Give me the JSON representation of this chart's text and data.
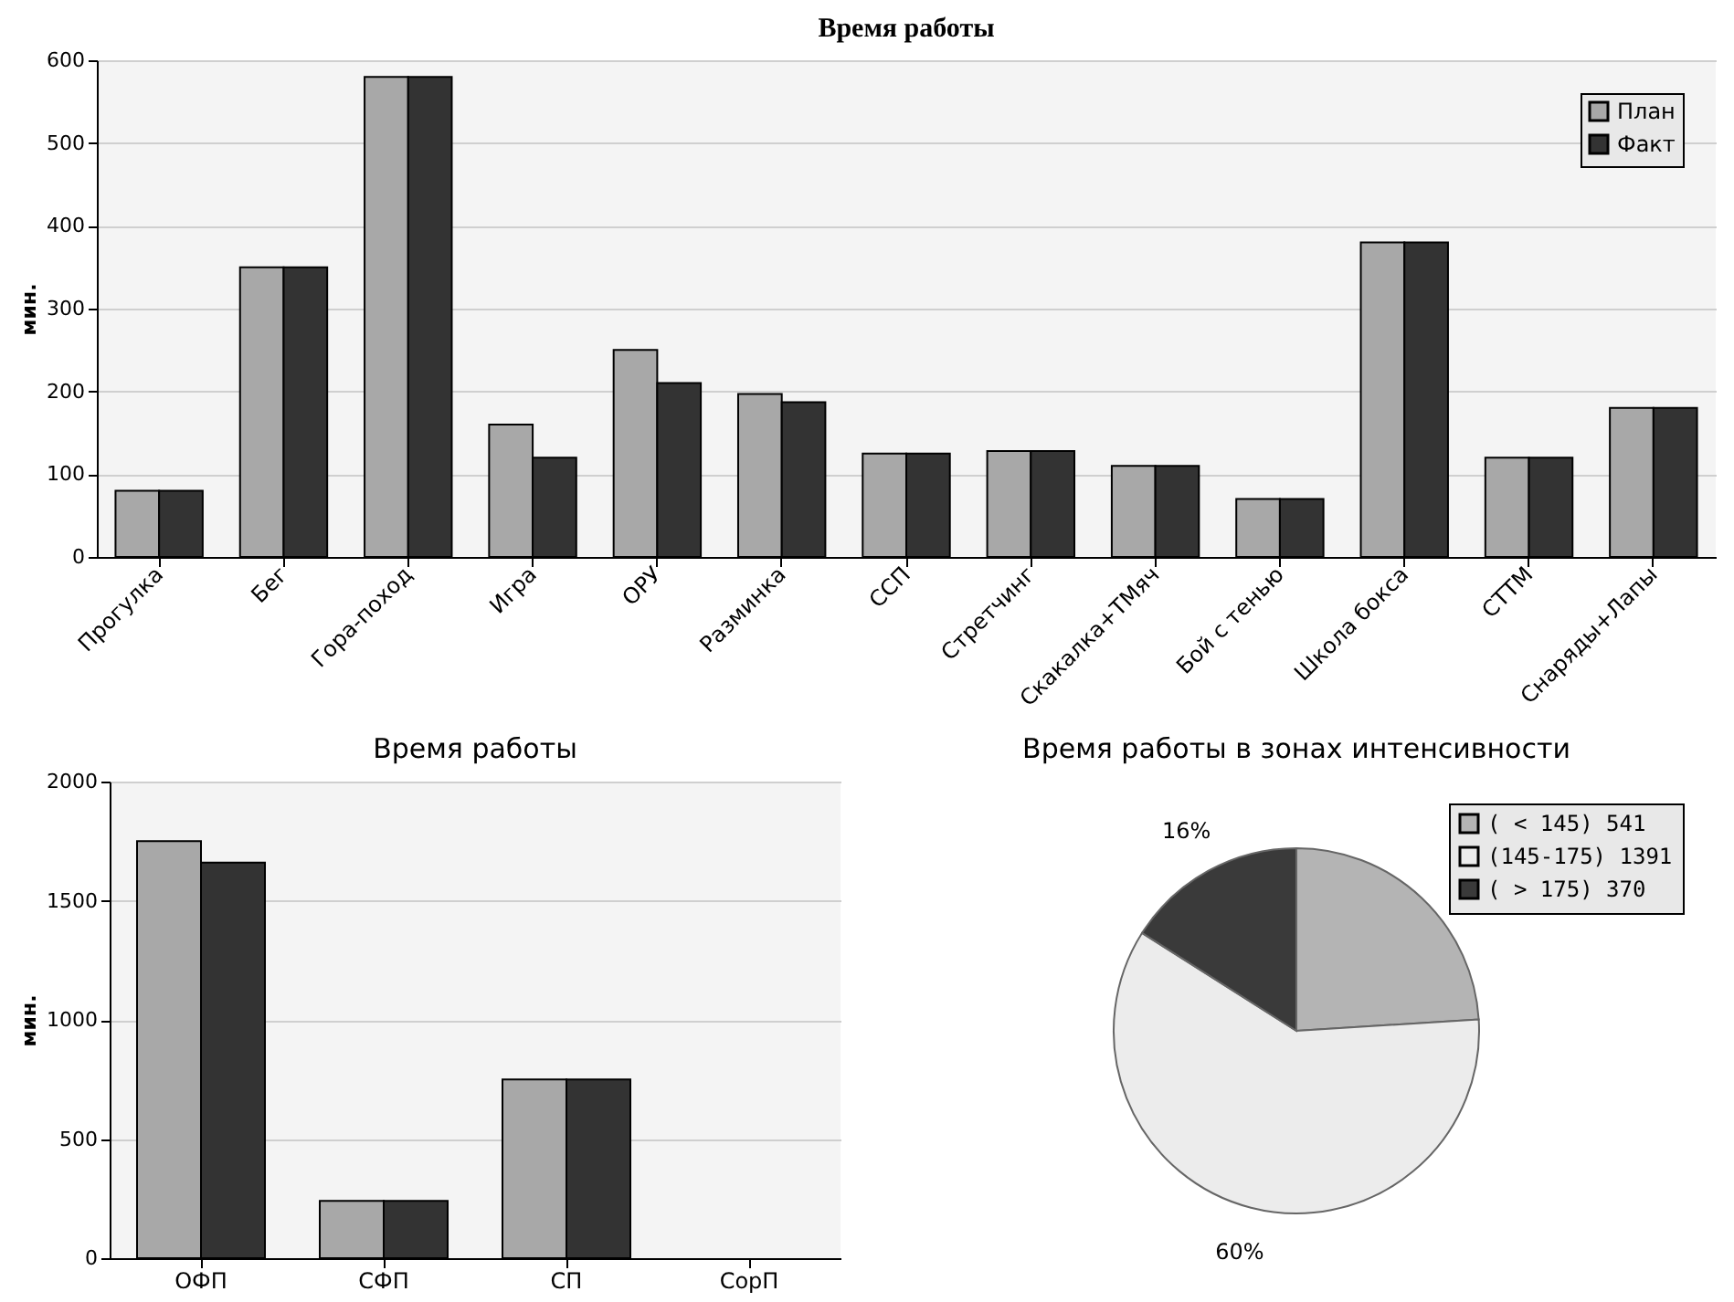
{
  "chart_data": [
    {
      "type": "bar",
      "title": "Время работы",
      "ylabel": "мин.",
      "categories": [
        "Прогулка",
        "Бег",
        "Гора-поход",
        "Игра",
        "ОРУ",
        "Разминка",
        "ССП",
        "Стретчинг",
        "Скакалка+ТМяч",
        "Бой с тенью",
        "Школа бокса",
        "СТТМ",
        "Снаряды+Лапы"
      ],
      "series": [
        {
          "name": "План",
          "color": "#a8a8a8",
          "values": [
            80,
            350,
            580,
            160,
            250,
            197,
            125,
            128,
            110,
            70,
            380,
            120,
            180
          ]
        },
        {
          "name": "Факт",
          "color": "#333333",
          "values": [
            80,
            350,
            580,
            120,
            210,
            187,
            125,
            128,
            110,
            70,
            380,
            120,
            180
          ]
        }
      ],
      "ylim": [
        0,
        600
      ],
      "yticks": [
        0,
        100,
        200,
        300,
        400,
        500,
        600
      ],
      "grid": "y",
      "legend": "top right"
    },
    {
      "type": "bar",
      "title": "Время работы",
      "ylabel": "мин.",
      "categories": [
        "ОФП",
        "СФП",
        "СП",
        "СорП"
      ],
      "series": [
        {
          "color": "#a8a8a8",
          "values": [
            1750,
            240,
            750,
            0
          ]
        },
        {
          "color": "#333333",
          "values": [
            1660,
            240,
            750,
            0
          ]
        }
      ],
      "ylim": [
        0,
        2000
      ],
      "yticks": [
        0,
        500,
        {
          "value": 1000,
          "label": "1000"
        },
        {
          "value": 1500,
          "label": "1500"
        },
        {
          "value": 2000,
          "label": "2000"
        }
      ],
      "grid": "y"
    },
    {
      "type": "pie",
      "title": "Время работы в зонах интенсивности",
      "categories": [
        "(   < 145) 541",
        "(145-175) 1391",
        "(   > 175) 370"
      ],
      "values": [
        24,
        60,
        16
      ],
      "colors": [
        "#b4b4b4",
        "#ececec",
        "#3a3a3a"
      ],
      "value_labels": [
        null,
        "60%",
        "16%"
      ],
      "legend": "top right"
    }
  ]
}
